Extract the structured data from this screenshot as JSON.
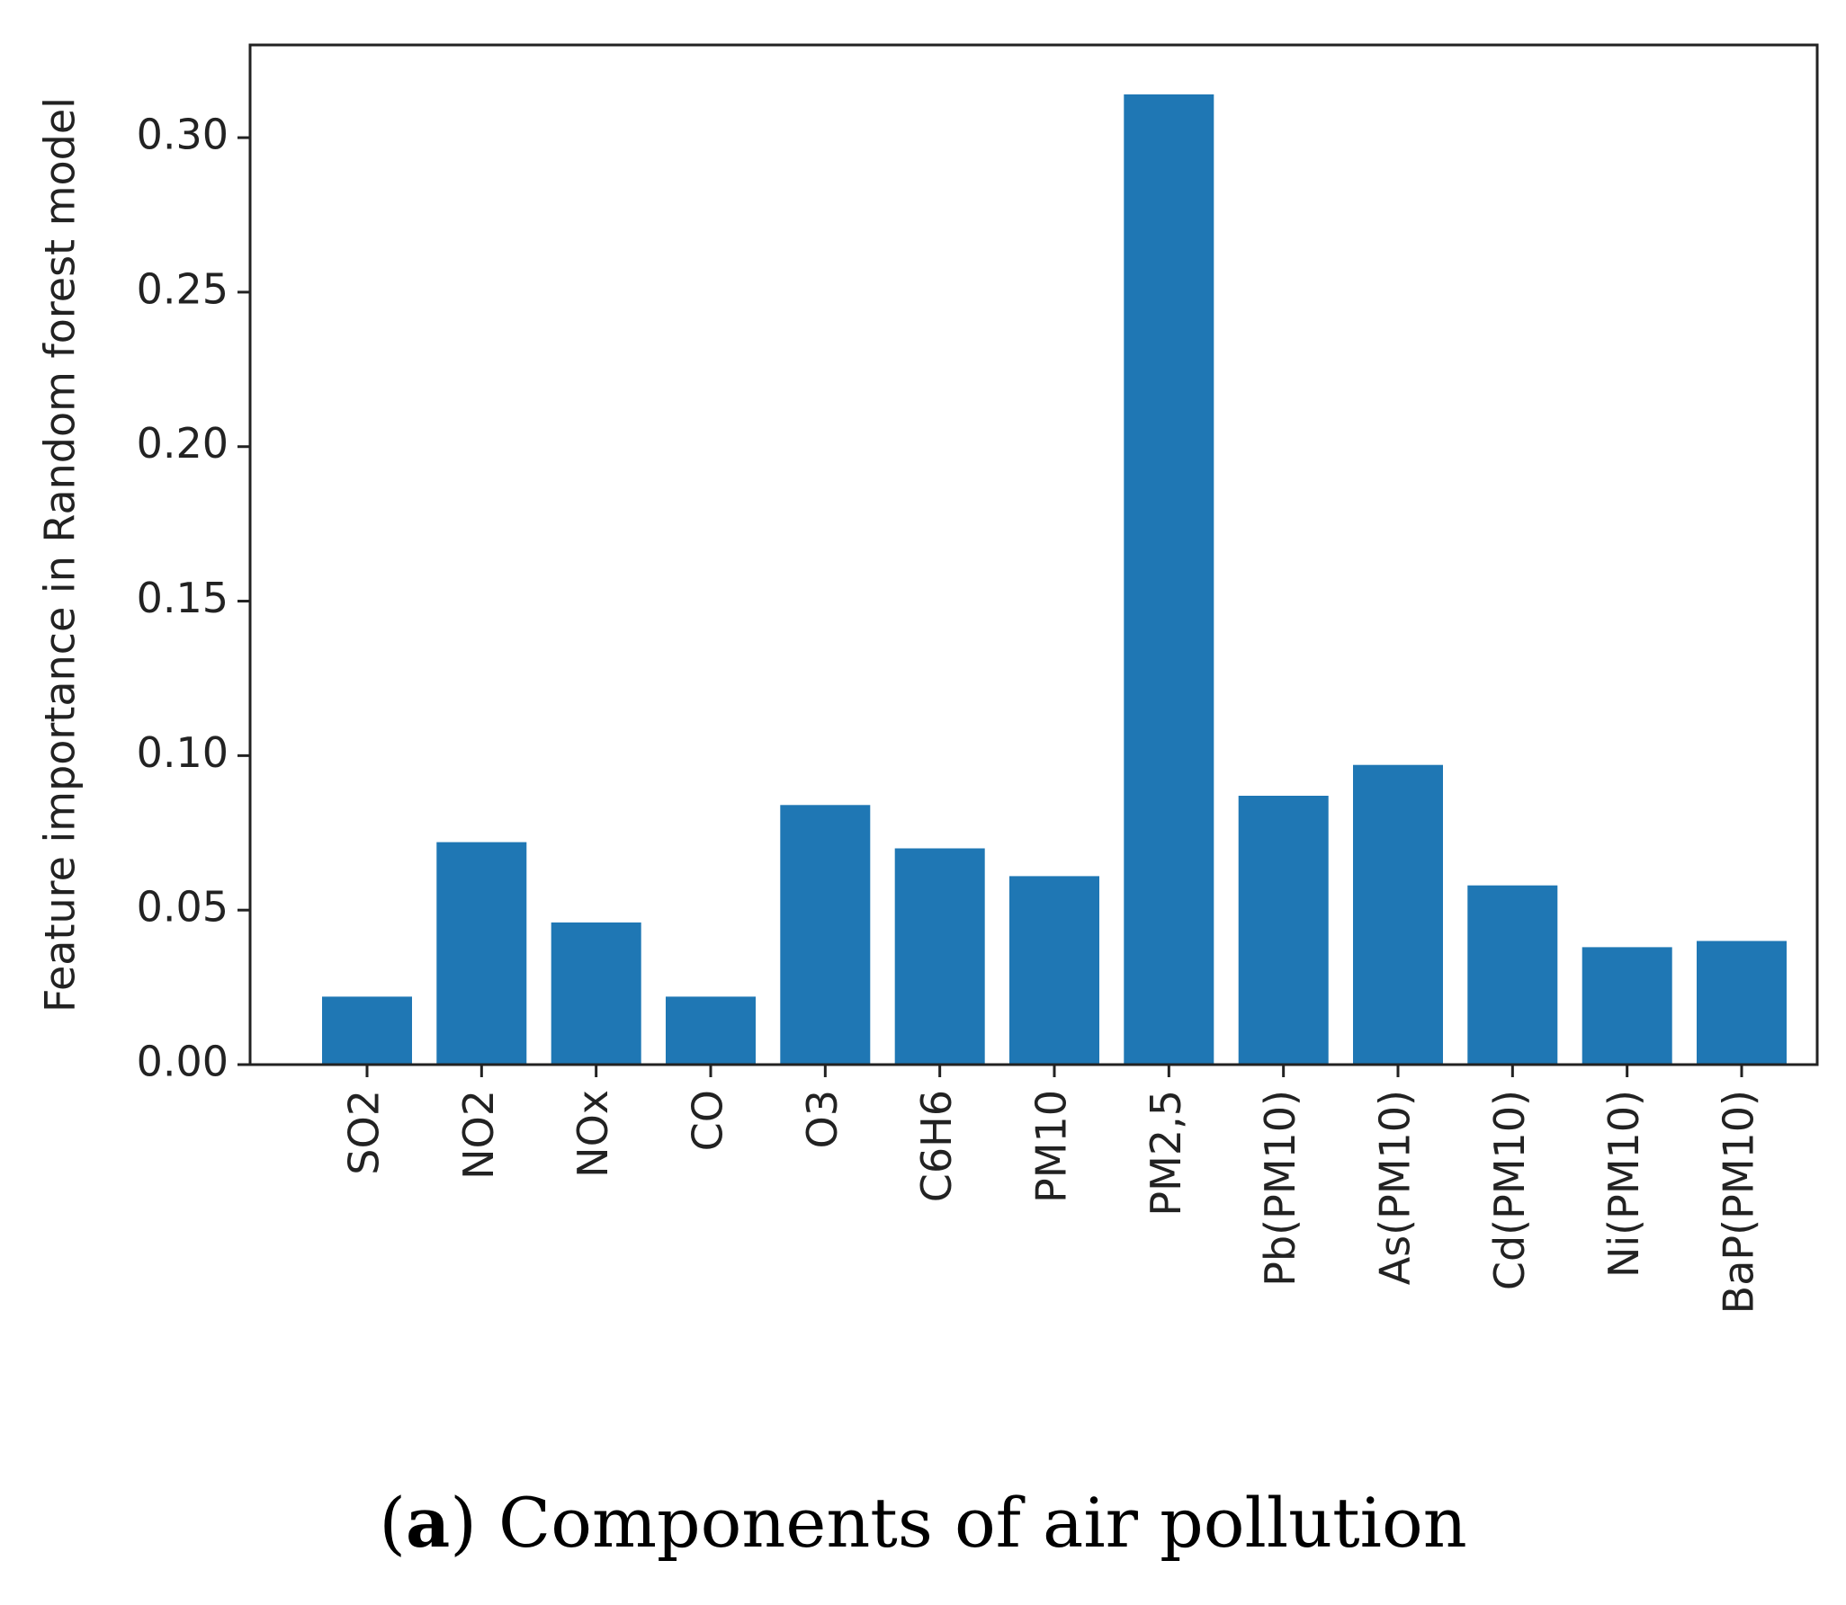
{
  "chart_data": {
    "type": "bar",
    "categories": [
      "SO2",
      "NO2",
      "NOx",
      "CO",
      "O3",
      "C6H6",
      "PM10",
      "PM2,5",
      "Pb(PM10)",
      "As(PM10)",
      "Cd(PM10)",
      "Ni(PM10)",
      "BaP(PM10)"
    ],
    "values": [
      0.022,
      0.072,
      0.046,
      0.022,
      0.084,
      0.07,
      0.061,
      0.314,
      0.087,
      0.097,
      0.058,
      0.038,
      0.04
    ],
    "title": "",
    "xlabel": "",
    "ylabel": "Feature importance in Random forest model",
    "ylim": [
      0,
      0.33
    ],
    "yticks": [
      "0.00",
      "0.05",
      "0.10",
      "0.15",
      "0.20",
      "0.25",
      "0.30"
    ],
    "bar_color": "#1f77b4",
    "grid": false,
    "legend": "none"
  },
  "caption": {
    "prefix_open": "(",
    "label": "a",
    "prefix_close": ")",
    "text": " Components of air pollution"
  }
}
